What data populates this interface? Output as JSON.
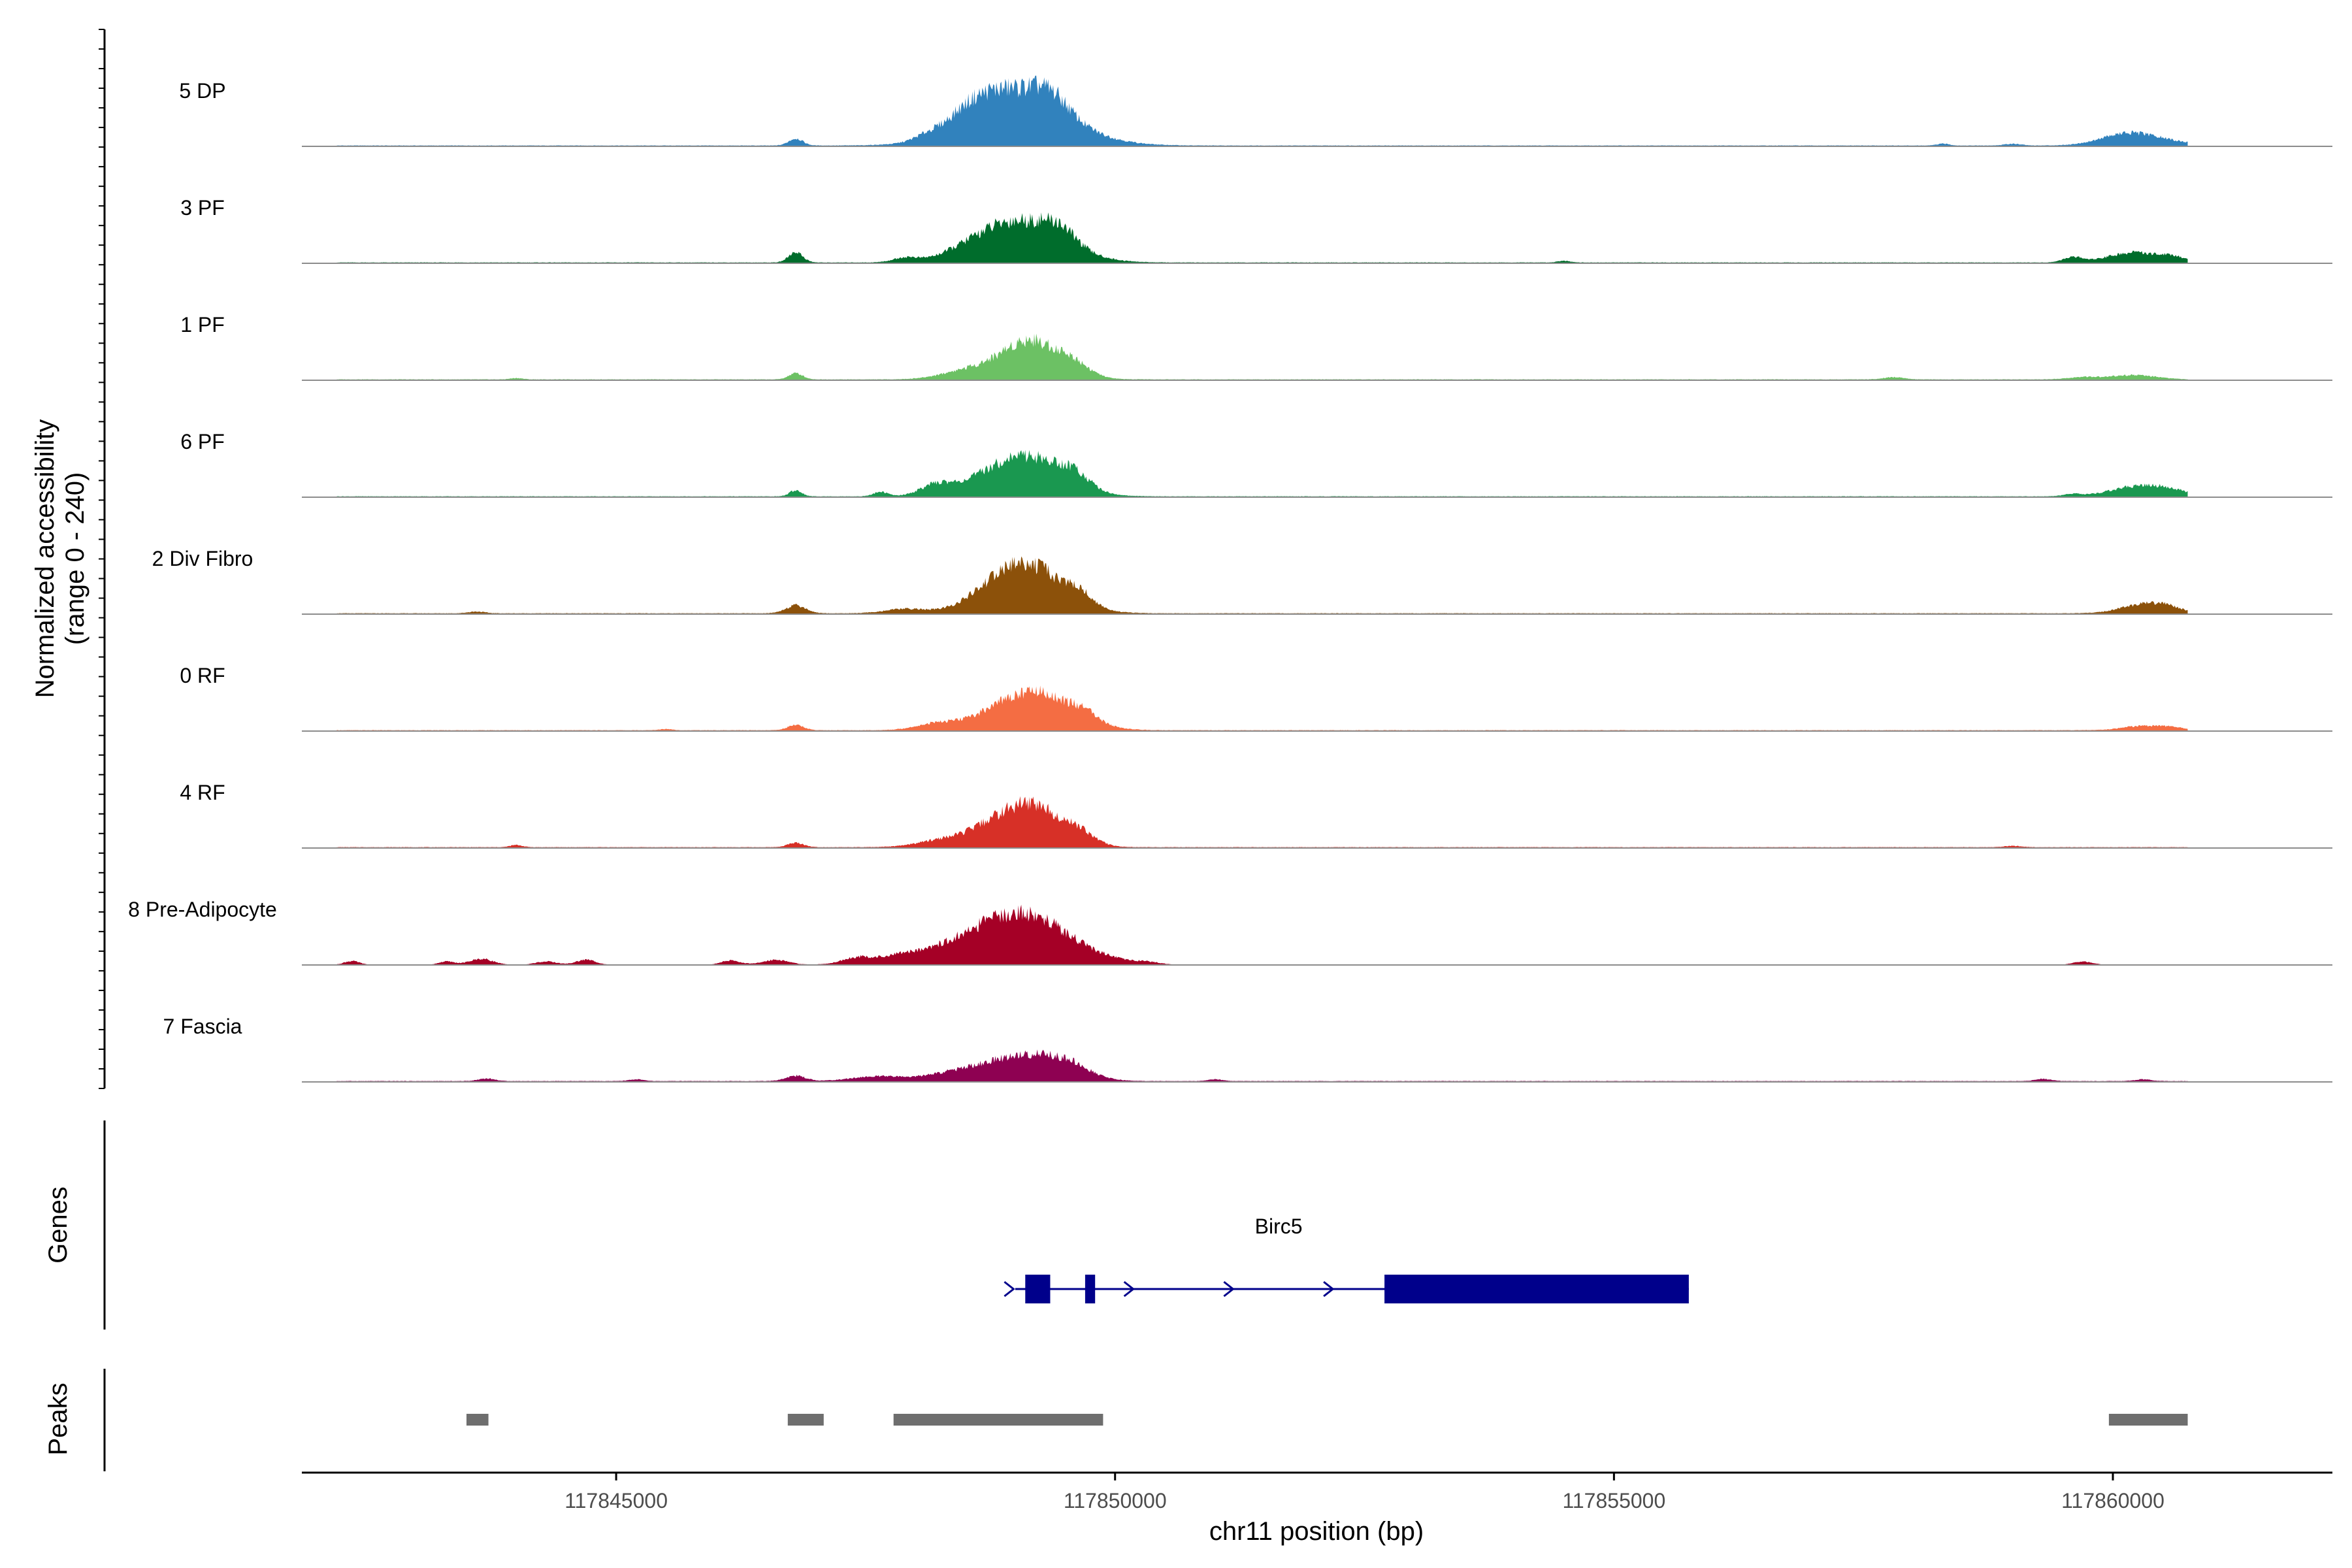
{
  "chart_data": {
    "type": "area",
    "title": "",
    "ylabel_line1": "Normalized accessibility",
    "ylabel_line2": "(range 0 - 240)",
    "xlabel": "chr11 position (bp)",
    "xlim": [
      117841850,
      117862200
    ],
    "ylim": [
      0,
      240
    ],
    "track_range": [
      117842200,
      117860750
    ],
    "xticks": [
      {
        "value": 117845000,
        "label": "117845000"
      },
      {
        "value": 117850000,
        "label": "117850000"
      },
      {
        "value": 117855000,
        "label": "117855000"
      },
      {
        "value": 117860000,
        "label": "117860000"
      }
    ],
    "series": [
      {
        "name": "5 DP",
        "color": "#3182BD",
        "base": 2,
        "bumps": [
          [
            117846800,
            70,
            16
          ],
          [
            117848100,
            120,
            8
          ],
          [
            117848500,
            220,
            22
          ],
          [
            117848800,
            300,
            32
          ],
          [
            117849050,
            500,
            100
          ],
          [
            117849350,
            180,
            40
          ],
          [
            117860100,
            250,
            20
          ],
          [
            117860400,
            300,
            13
          ],
          [
            117858300,
            60,
            4
          ],
          [
            117859000,
            80,
            4
          ]
        ]
      },
      {
        "name": "3 PF",
        "color": "#006D2C",
        "base": 2,
        "bumps": [
          [
            117846800,
            70,
            24
          ],
          [
            117847900,
            120,
            10
          ],
          [
            117848600,
            300,
            22
          ],
          [
            117849100,
            400,
            90
          ],
          [
            117849450,
            150,
            28
          ],
          [
            117859600,
            90,
            12
          ],
          [
            117860200,
            250,
            22
          ],
          [
            117860600,
            160,
            10
          ],
          [
            117854500,
            60,
            4
          ]
        ]
      },
      {
        "name": "1 PF",
        "color": "#6CC164",
        "base": 2,
        "bumps": [
          [
            117846800,
            70,
            14
          ],
          [
            117848500,
            250,
            18
          ],
          [
            117849150,
            300,
            90
          ],
          [
            117849600,
            150,
            20
          ],
          [
            117857800,
            100,
            5
          ],
          [
            117859700,
            150,
            5
          ],
          [
            117860200,
            220,
            10
          ],
          [
            117844000,
            60,
            3
          ]
        ]
      },
      {
        "name": "6 PF",
        "color": "#1A9850",
        "base": 2,
        "bumps": [
          [
            117846800,
            60,
            14
          ],
          [
            117847650,
            70,
            10
          ],
          [
            117848200,
            150,
            20
          ],
          [
            117848700,
            350,
            25
          ],
          [
            117849150,
            350,
            82
          ],
          [
            117849600,
            150,
            28
          ],
          [
            117860200,
            250,
            20
          ],
          [
            117860550,
            200,
            14
          ],
          [
            117859600,
            90,
            5
          ]
        ]
      },
      {
        "name": "2 Div Fibro",
        "color": "#8C510A",
        "base": 2,
        "bumps": [
          [
            117846800,
            100,
            18
          ],
          [
            117847900,
            200,
            10
          ],
          [
            117848800,
            300,
            28
          ],
          [
            117849150,
            350,
            100
          ],
          [
            117849650,
            120,
            22
          ],
          [
            117860300,
            220,
            20
          ],
          [
            117860550,
            150,
            10
          ],
          [
            117843600,
            80,
            4
          ]
        ]
      },
      {
        "name": "0 RF",
        "color": "#F46D43",
        "base": 2,
        "bumps": [
          [
            117846800,
            80,
            12
          ],
          [
            117848200,
            200,
            14
          ],
          [
            117848800,
            300,
            25
          ],
          [
            117849250,
            350,
            80
          ],
          [
            117849700,
            120,
            16
          ],
          [
            117860300,
            200,
            10
          ],
          [
            117860600,
            120,
            5
          ],
          [
            117845500,
            60,
            3
          ]
        ]
      },
      {
        "name": "4 RF",
        "color": "#D73027",
        "base": 2,
        "bumps": [
          [
            117846800,
            80,
            10
          ],
          [
            117848300,
            250,
            18
          ],
          [
            117848700,
            200,
            22
          ],
          [
            117849150,
            300,
            100
          ],
          [
            117849650,
            150,
            22
          ],
          [
            117844000,
            60,
            5
          ],
          [
            117859000,
            80,
            3
          ]
        ]
      },
      {
        "name": "8 Pre-Adipocyte",
        "color": "#A50026",
        "base": 0,
        "bumps": [
          [
            117842350,
            80,
            9
          ],
          [
            117843300,
            80,
            8
          ],
          [
            117843650,
            120,
            14
          ],
          [
            117844300,
            110,
            8
          ],
          [
            117844700,
            100,
            12
          ],
          [
            117846150,
            100,
            10
          ],
          [
            117846600,
            130,
            12
          ],
          [
            117847400,
            130,
            10
          ],
          [
            117847900,
            400,
            14
          ],
          [
            117848400,
            450,
            22
          ],
          [
            117848900,
            450,
            30
          ],
          [
            117849050,
            380,
            80
          ],
          [
            117849500,
            250,
            22
          ],
          [
            117849900,
            200,
            10
          ],
          [
            117850300,
            150,
            7
          ],
          [
            117859700,
            100,
            8
          ]
        ]
      },
      {
        "name": "7 Fascia",
        "color": "#8E0152",
        "base": 2,
        "bumps": [
          [
            117846800,
            100,
            12
          ],
          [
            117847600,
            250,
            10
          ],
          [
            117848500,
            350,
            22
          ],
          [
            117849150,
            350,
            55
          ],
          [
            117849550,
            200,
            20
          ],
          [
            117843700,
            80,
            6
          ],
          [
            117859300,
            80,
            5
          ],
          [
            117860300,
            80,
            4
          ],
          [
            117845200,
            70,
            4
          ],
          [
            117851000,
            70,
            4
          ]
        ]
      }
    ],
    "gene_track": {
      "label": "Genes",
      "gene_name": "Birc5",
      "line": [
        117849000,
        117855750
      ],
      "exons": [
        [
          117849100,
          117849350
        ],
        [
          117849700,
          117849800
        ],
        [
          117852700,
          117855750
        ]
      ],
      "arrows": [
        117848950,
        117850150,
        117851150,
        117852150
      ],
      "color": "#00008B"
    },
    "peak_track": {
      "label": "Peaks",
      "color": "#6E6E6E",
      "peaks": [
        [
          117843500,
          117843720
        ],
        [
          117846720,
          117847080
        ],
        [
          117847780,
          117849880
        ],
        [
          117859960,
          117860750
        ]
      ]
    }
  }
}
